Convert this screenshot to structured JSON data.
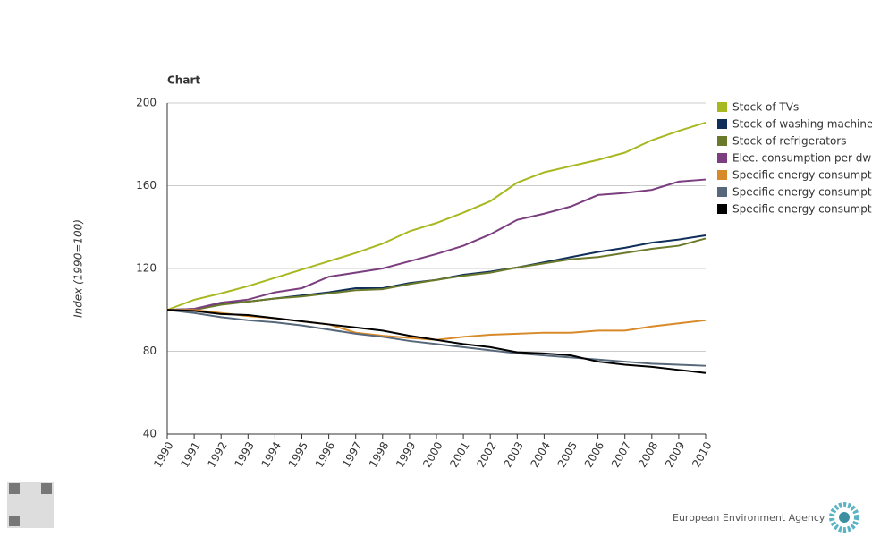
{
  "chart_data": {
    "type": "line",
    "title": "Chart",
    "y_label": "Index (1990=100)",
    "categories": [
      "1990",
      "1991",
      "1992",
      "1993",
      "1994",
      "1995",
      "1996",
      "1997",
      "1998",
      "1999",
      "2000",
      "2001",
      "2002",
      "2003",
      "2004",
      "2005",
      "2006",
      "2007",
      "2008",
      "2009",
      "2010"
    ],
    "series": [
      {
        "name": "Stock of TVs",
        "color": "#a8b820",
        "values": [
          100,
          104.9,
          108,
          111.5,
          115.5,
          119.5,
          123.5,
          127.5,
          132,
          138,
          142,
          147,
          152.5,
          161.5,
          166.5,
          169.5,
          172.5,
          176,
          182,
          186.5,
          190.5
        ]
      },
      {
        "name": "Stock of washing machine",
        "color": "#0f2f5a",
        "values": [
          100,
          100.5,
          103,
          104,
          105.5,
          107,
          108.5,
          110.5,
          110.5,
          113,
          114.5,
          117,
          118.5,
          120.5,
          123,
          125.5,
          128,
          130,
          132.5,
          134,
          136
        ]
      },
      {
        "name": "Stock of refrigerators",
        "color": "#6b7a2a",
        "values": [
          100,
          100,
          102.5,
          104,
          105.5,
          106.5,
          108,
          109.5,
          110,
          112.5,
          114.5,
          116.5,
          118,
          120.5,
          122.5,
          124.5,
          125.5,
          127.5,
          129.5,
          131,
          134.5
        ]
      },
      {
        "name": "Elec. consumption per dw",
        "color": "#7b3f7f",
        "values": [
          100,
          100.5,
          103.5,
          105,
          108.5,
          110.5,
          116,
          118,
          120,
          123.5,
          127,
          131,
          136.5,
          143.5,
          146.5,
          150,
          155.5,
          156.5,
          158,
          162,
          163
        ]
      },
      {
        "name": "Specific energy consumpt",
        "color": "#d88a2a",
        "values": [
          100,
          100,
          98.5,
          97,
          96,
          94.5,
          93,
          89,
          87.5,
          86.5,
          85.5,
          87,
          88,
          88.5,
          89,
          89,
          90,
          90,
          92,
          93.5,
          95
        ]
      },
      {
        "name": "Specific energy consumpt",
        "color": "#56687a",
        "values": [
          100,
          98.5,
          96.5,
          95,
          94,
          92.5,
          90.5,
          88.5,
          87,
          85,
          83.5,
          82,
          80.5,
          79,
          78,
          77,
          76,
          75,
          74,
          73.5,
          73
        ]
      },
      {
        "name": "Specific energy consumpt",
        "color": "#000000",
        "values": [
          100,
          99.5,
          98,
          97.5,
          96,
          94.5,
          93,
          91.5,
          90,
          87.5,
          85.5,
          83.5,
          82,
          79.5,
          79,
          78,
          75,
          73.5,
          72.5,
          71,
          69.5
        ]
      }
    ],
    "ylim": [
      40,
      200
    ],
    "yticks": [
      40,
      80,
      120,
      160,
      200
    ],
    "grid": true,
    "footer": "European Environment Agency"
  }
}
